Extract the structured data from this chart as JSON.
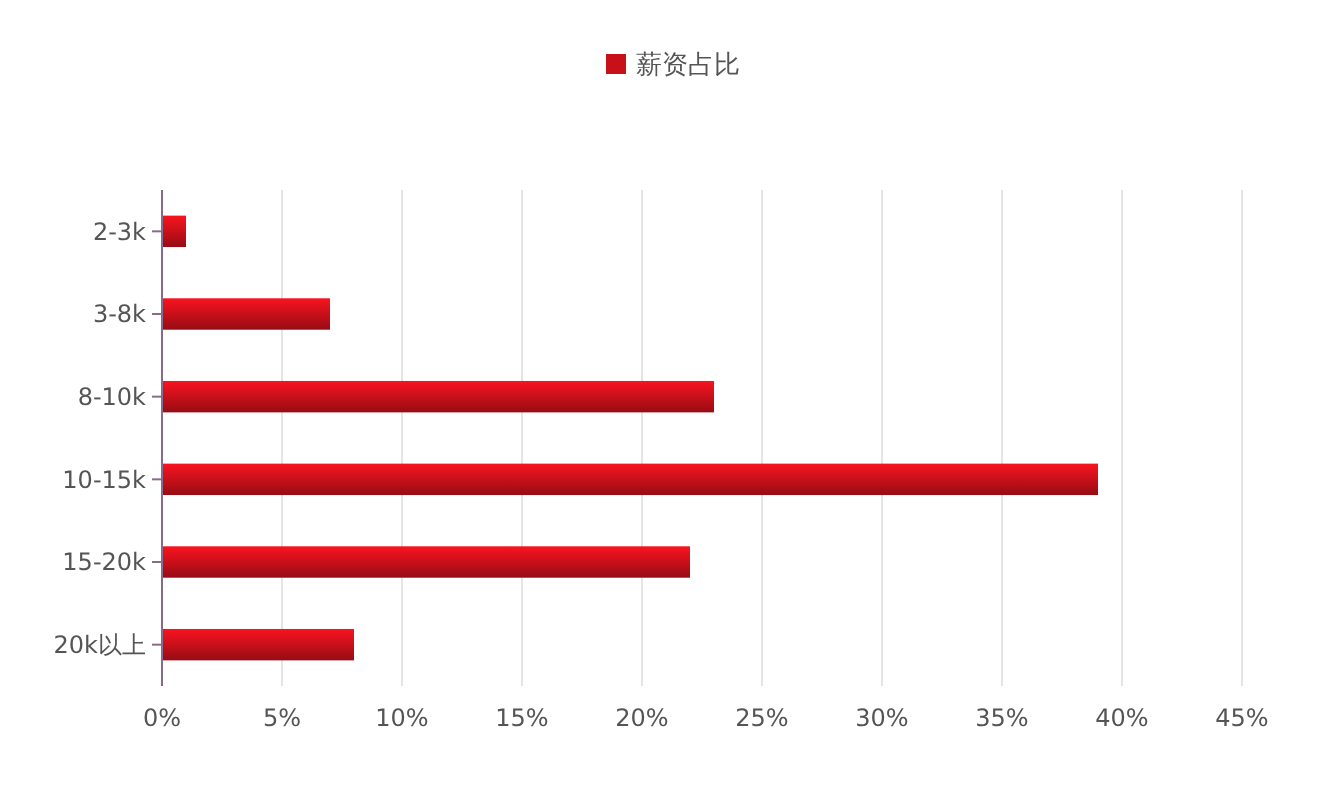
{
  "chart_data": {
    "type": "bar",
    "orientation": "horizontal",
    "categories": [
      "2-3k",
      "3-8k",
      "8-10k",
      "10-15k",
      "15-20k",
      "20k以上"
    ],
    "series": [
      {
        "name": "薪资占比",
        "color": "#c8101a",
        "values": [
          1,
          7,
          23,
          39,
          22,
          8
        ]
      }
    ],
    "xlim": [
      0,
      45
    ],
    "xticks": [
      {
        "value": 0,
        "label": "0%"
      },
      {
        "value": 5,
        "label": "5%"
      },
      {
        "value": 10,
        "label": "10%"
      },
      {
        "value": 15,
        "label": "15%"
      },
      {
        "value": 20,
        "label": "20%"
      },
      {
        "value": 25,
        "label": "25%"
      },
      {
        "value": 30,
        "label": "30%"
      },
      {
        "value": 35,
        "label": "35%"
      },
      {
        "value": 40,
        "label": "40%"
      },
      {
        "value": 45,
        "label": "45%"
      }
    ],
    "grid": "x",
    "legend": "top"
  }
}
